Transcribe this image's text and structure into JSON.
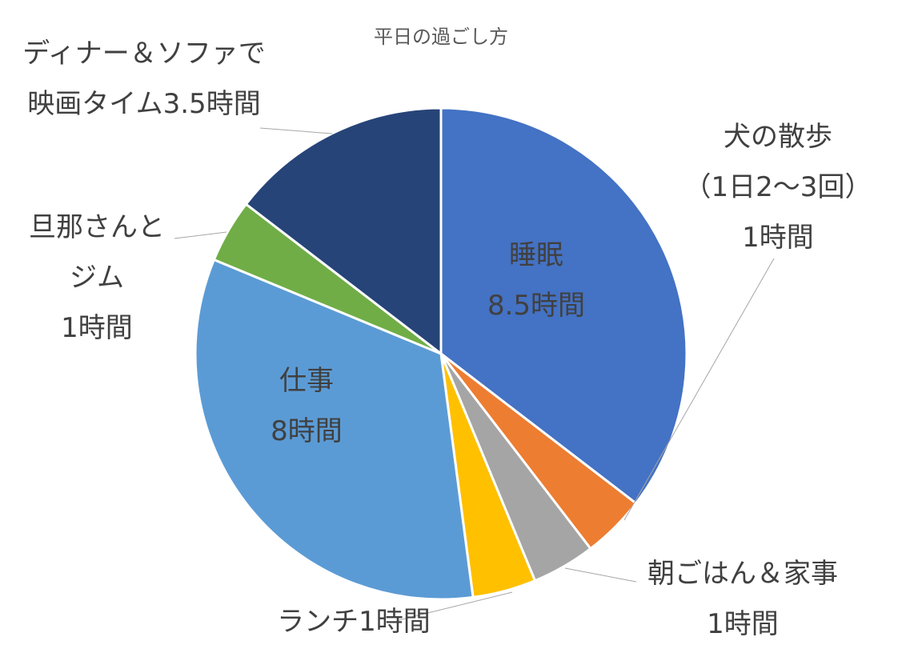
{
  "chart_data": {
    "type": "pie",
    "title": "平日の過ごし方",
    "slices": [
      {
        "name": "睡眠",
        "value_label": "8.5時間",
        "value": 8.5,
        "color": "#4472C4"
      },
      {
        "name": "犬の散歩（1日2〜3回）",
        "label_lines": [
          "犬の散歩",
          "（1日2〜3回）",
          "1時間"
        ],
        "value": 1,
        "color": "#ED7D31"
      },
      {
        "name": "朝ごはん＆家事",
        "label_lines": [
          "朝ごはん＆家事",
          "1時間"
        ],
        "value": 1,
        "color": "#A5A5A5"
      },
      {
        "name": "ランチ",
        "label_lines": [
          "ランチ1時間"
        ],
        "value": 1,
        "color": "#FFC000"
      },
      {
        "name": "仕事",
        "value_label": "8時間",
        "value": 8,
        "color": "#5B9BD5"
      },
      {
        "name": "旦那さんとジム",
        "label_lines": [
          "旦那さんと",
          "ジム",
          "1時間"
        ],
        "value": 1,
        "color": "#70AD47"
      },
      {
        "name": "ディナー＆ソファで映画タイム",
        "label_lines": [
          "ディナー＆ソファで",
          "映画タイム3.5時間"
        ],
        "value": 3.5,
        "color": "#264478"
      }
    ]
  }
}
